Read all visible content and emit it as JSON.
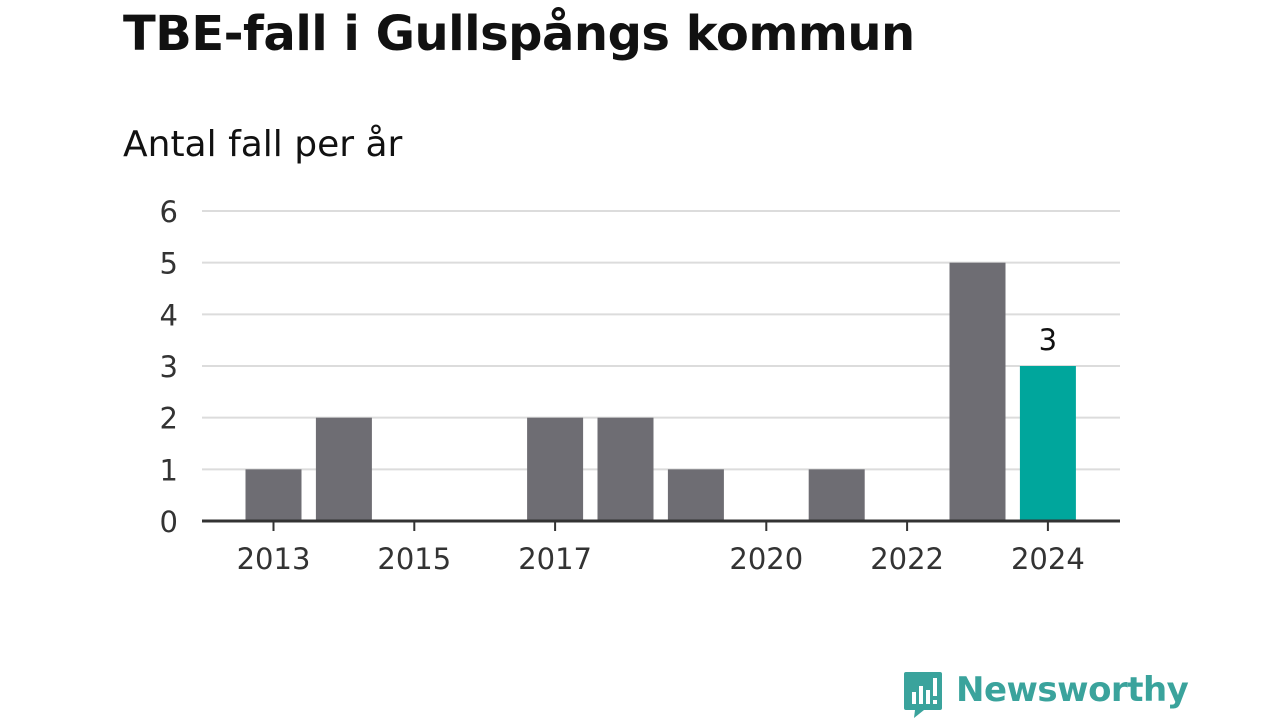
{
  "header": {
    "title": "TBE-fall i Gullspångs kommun",
    "subtitle": "Antal fall per år"
  },
  "chart_data": {
    "type": "bar",
    "title": "TBE-fall i Gullspångs kommun",
    "subtitle": "Antal fall per år",
    "xlabel": "",
    "ylabel": "",
    "categories": [
      2013,
      2014,
      2015,
      2016,
      2017,
      2018,
      2019,
      2020,
      2021,
      2022,
      2023,
      2024
    ],
    "values": [
      1,
      2,
      0,
      0,
      2,
      2,
      1,
      0,
      1,
      0,
      5,
      3
    ],
    "x_tick_labels": [
      "2013",
      "2015",
      "2017",
      "2020",
      "2022",
      "2024"
    ],
    "y_ticks": [
      0,
      1,
      2,
      3,
      4,
      5,
      6
    ],
    "ylim": [
      0,
      6
    ],
    "grid": true,
    "highlight": {
      "category": 2024,
      "label": "3"
    },
    "colors": {
      "bar": "#6e6d73",
      "highlight": "#00a69c",
      "grid": "#dcdcdc",
      "axis": "#333333"
    }
  },
  "branding": {
    "logo_text": "Newsworthy",
    "logo_color": "#3aa39c"
  }
}
